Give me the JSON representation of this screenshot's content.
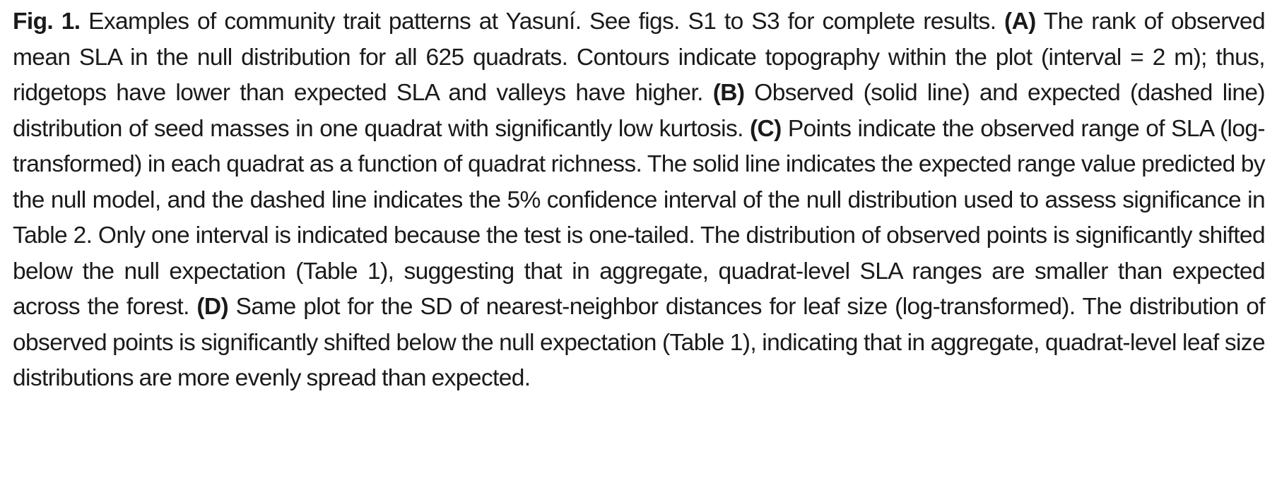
{
  "figure": {
    "label": "Fig. 1.",
    "segments": [
      {
        "type": "text",
        "text": " Examples of community trait patterns at Yasuní. See figs. S1 to S3 for complete results. "
      },
      {
        "type": "panel",
        "text": "(A)"
      },
      {
        "type": "text",
        "text": " The rank of observed mean SLA in the null distribution for all 625 quadrats. Contours indicate topography within the plot (interval = 2 m); thus, ridgetops have lower than expected SLA and valleys have higher. "
      },
      {
        "type": "panel",
        "text": "(B)"
      },
      {
        "type": "text",
        "text": " Observed (solid line) and expected (dashed line) distribution of seed masses in one quadrat with significantly low kurtosis. "
      },
      {
        "type": "panel",
        "text": "(C)"
      },
      {
        "type": "text",
        "text": " Points indicate the observed range of SLA (log-transformed) in each quadrat as a function of quadrat richness. The solid line indicates the expected range value predicted by the null model, and the dashed line indicates the 5% confidence interval of the null distribution used to assess significance in Table 2. Only one interval is indicated because the test is one-tailed. The distribution of observed points is significantly shifted below the null expectation (Table 1), suggesting that in aggregate, quadrat-level SLA ranges are smaller than expected across the forest. "
      },
      {
        "type": "panel",
        "text": "(D)"
      },
      {
        "type": "text",
        "text": " Same plot for the SD of nearest-neighbor distances for leaf size (log-transformed). The distribution of observed points is significantly shifted below the null expectation (Table 1), indicating that in aggregate, quadrat-level leaf size distributions are more evenly spread than expected."
      }
    ]
  }
}
